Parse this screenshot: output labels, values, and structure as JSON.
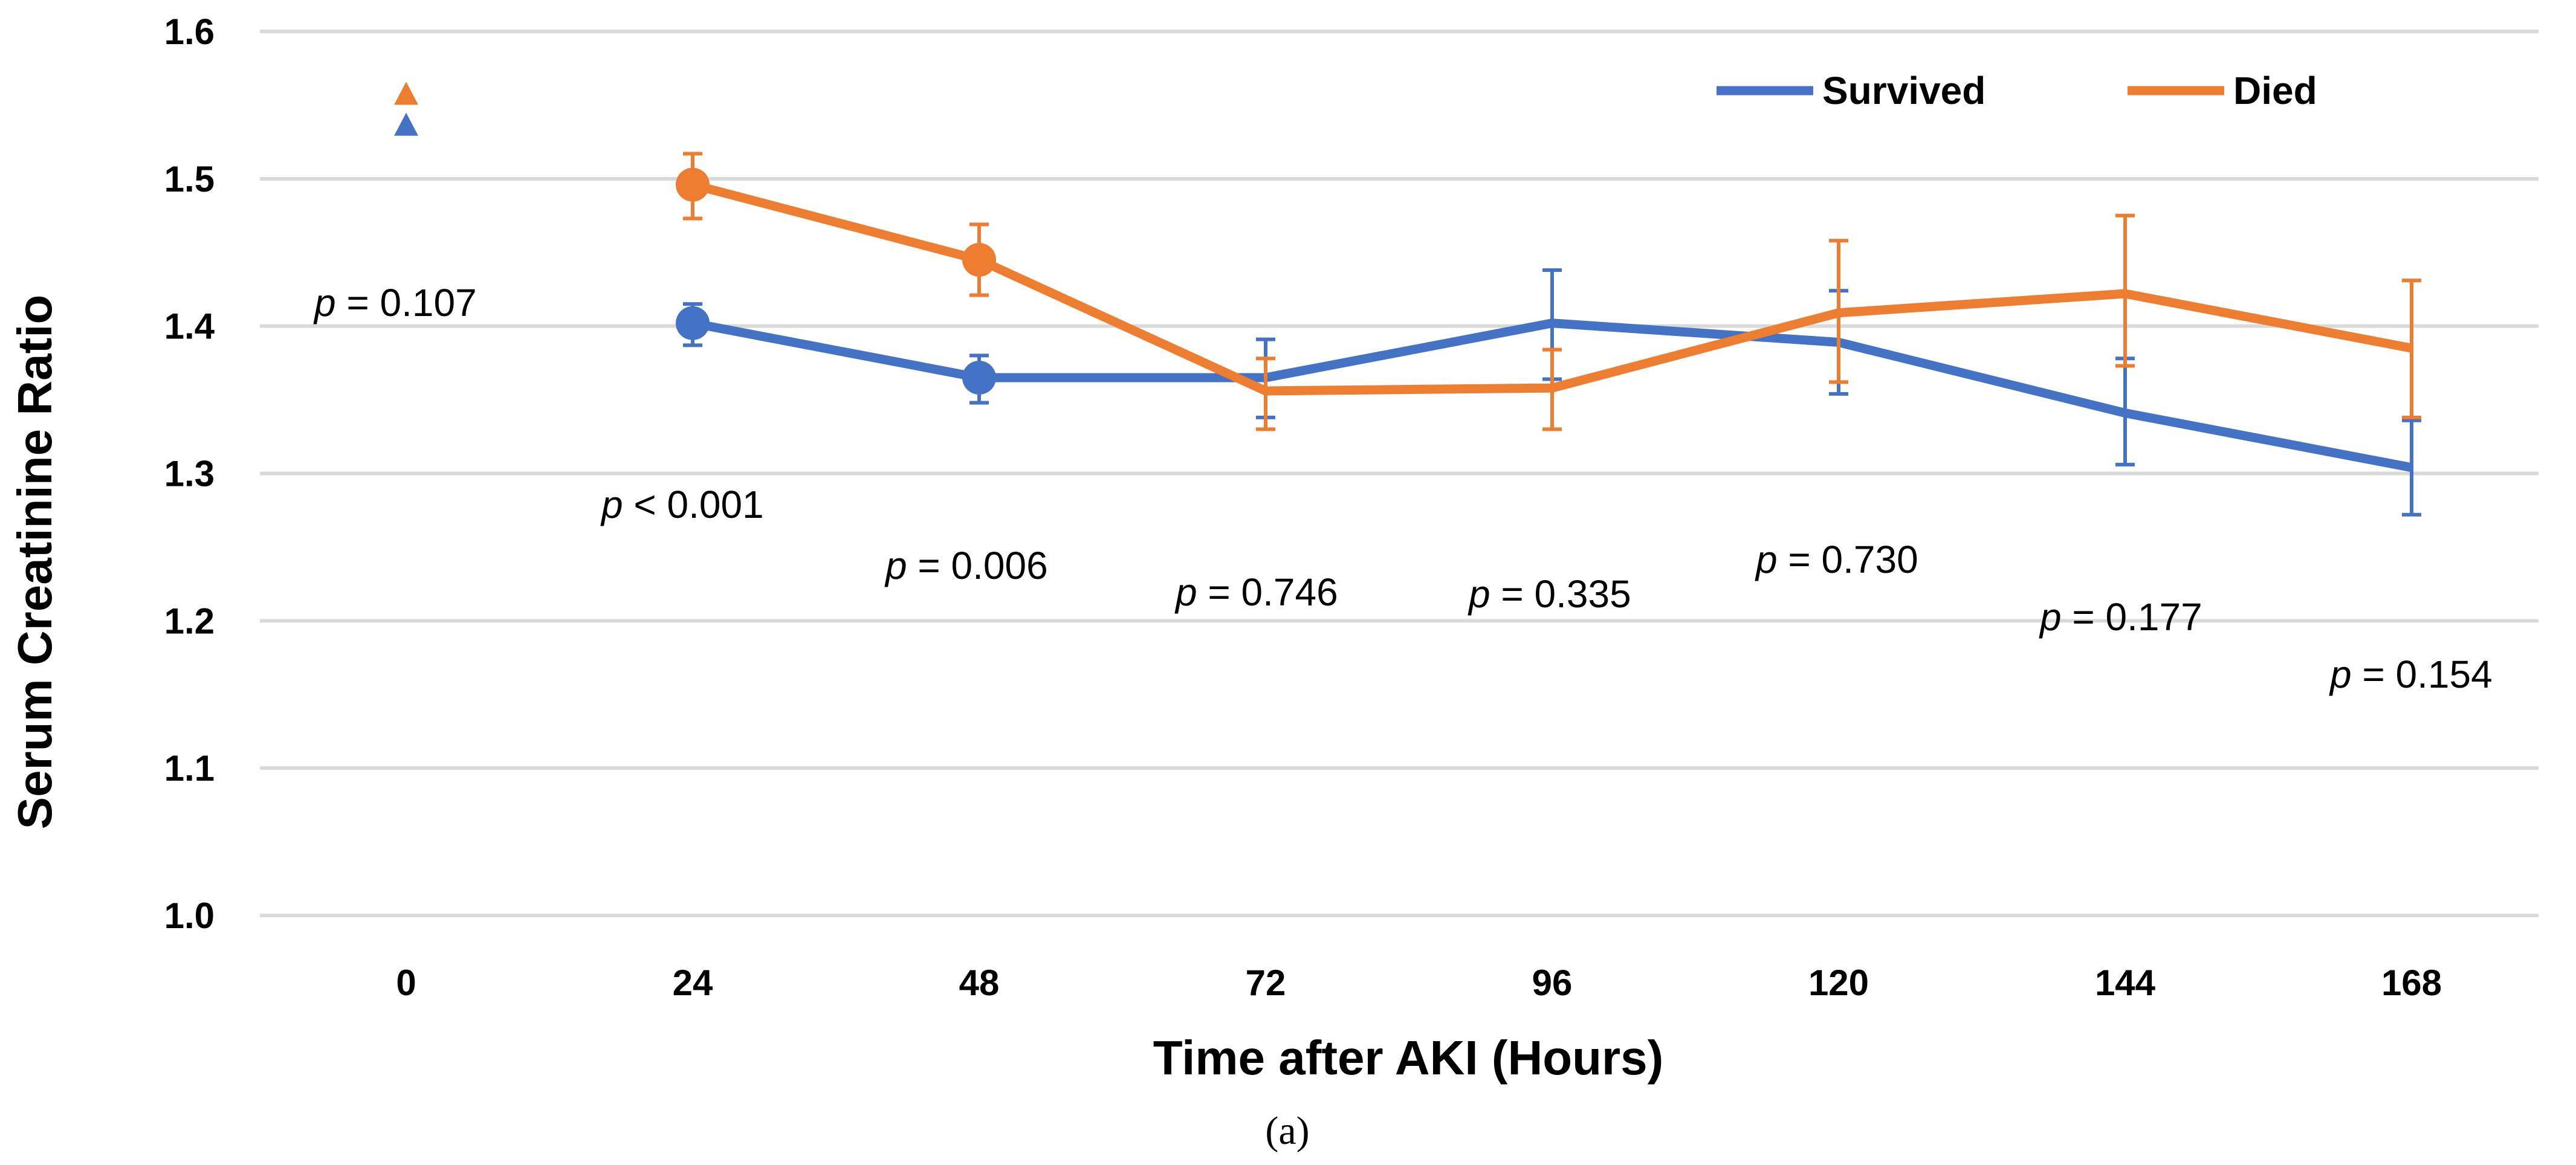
{
  "chart_data": {
    "type": "line",
    "title": "",
    "xlabel": "Time after AKI (Hours)",
    "ylabel": "Serum Creatinine Ratio",
    "caption": "(a)",
    "ylim": [
      1.0,
      1.6
    ],
    "yticks": [
      "1.0",
      "1.1",
      "1.2",
      "1.3",
      "1.4",
      "1.5",
      "1.6"
    ],
    "categories": [
      "0",
      "24",
      "48",
      "72",
      "96",
      "120",
      "144",
      "168"
    ],
    "grid": true,
    "legend_position": "top-right",
    "series": [
      {
        "name": "Survived",
        "color": "#4472c4",
        "baseline_marker": "triangle",
        "values": [
          1.537,
          1.402,
          1.365,
          1.365,
          1.402,
          1.389,
          1.341,
          1.304
        ],
        "err_low": [
          null,
          1.387,
          1.348,
          1.338,
          1.364,
          1.354,
          1.306,
          1.272
        ],
        "err_high": [
          null,
          1.415,
          1.38,
          1.391,
          1.438,
          1.424,
          1.378,
          1.336
        ],
        "emphasized_points": [
          1,
          2
        ]
      },
      {
        "name": "Died",
        "color": "#ed7d31",
        "baseline_marker": "triangle",
        "values": [
          1.558,
          1.496,
          1.445,
          1.356,
          1.358,
          1.409,
          1.422,
          1.385
        ],
        "err_low": [
          null,
          1.473,
          1.421,
          1.33,
          1.33,
          1.362,
          1.373,
          1.338
        ],
        "err_high": [
          null,
          1.517,
          1.469,
          1.378,
          1.384,
          1.458,
          1.475,
          1.431
        ],
        "emphasized_points": [
          1,
          2
        ]
      }
    ],
    "annotations": [
      {
        "x": "0",
        "text": " = 0.107"
      },
      {
        "x": "24",
        "text": " < 0.001"
      },
      {
        "x": "48",
        "text": " = 0.006"
      },
      {
        "x": "72",
        "text": " = 0.746"
      },
      {
        "x": "96",
        "text": " = 0.335"
      },
      {
        "x": "120",
        "text": " = 0.730"
      },
      {
        "x": "144",
        "text": " = 0.177"
      },
      {
        "x": "168",
        "text": " = 0.154"
      }
    ],
    "annotation_prefix": "p"
  }
}
